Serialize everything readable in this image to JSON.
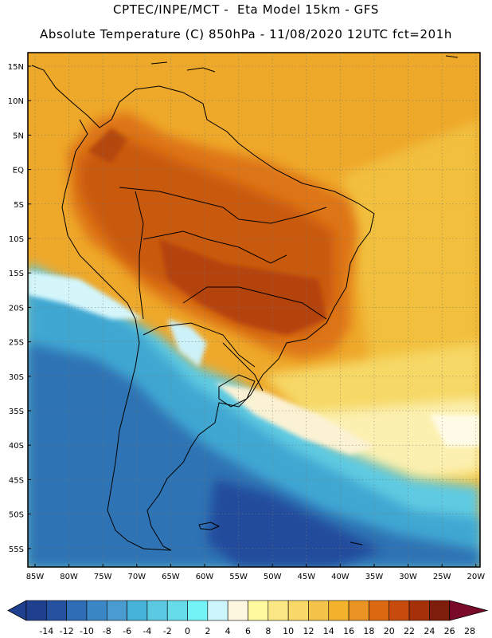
{
  "header": {
    "line1": "CPTEC/INPE/MCT -  Eta Model 15km - GFS",
    "line2": "Absolute Temperature (C) 850hPa - 11/08/2020 12UTC fct=201h"
  },
  "map": {
    "lat_labels": [
      "15N",
      "10N",
      "5N",
      "EQ",
      "5S",
      "10S",
      "15S",
      "20S",
      "25S",
      "30S",
      "35S",
      "40S",
      "45S",
      "50S",
      "55S"
    ],
    "lon_labels": [
      "85W",
      "80W",
      "75W",
      "70W",
      "65W",
      "60W",
      "55W",
      "50W",
      "45W",
      "40W",
      "35W",
      "30W",
      "25W",
      "20W"
    ],
    "grid": "dotted"
  },
  "colorbar": {
    "ticks": [
      "-14",
      "-12",
      "-10",
      "-8",
      "-6",
      "-4",
      "-2",
      "0",
      "2",
      "4",
      "6",
      "8",
      "10",
      "12",
      "14",
      "16",
      "18",
      "20",
      "22",
      "24",
      "26",
      "28"
    ],
    "colors": [
      "#1f3f8f",
      "#2552a0",
      "#2f6eb6",
      "#3b87c6",
      "#4a9bcf",
      "#46b3d9",
      "#5cc9e2",
      "#66dbea",
      "#74f3f6",
      "#ccf6fb",
      "#fdf7e0",
      "#fffaa0",
      "#fbe884",
      "#f8d866",
      "#f4c44a",
      "#f2b22c",
      "#ea9424",
      "#dc6a12",
      "#c64b0d",
      "#a5310a",
      "#7e1d0c",
      "#7a0a2a"
    ]
  }
}
